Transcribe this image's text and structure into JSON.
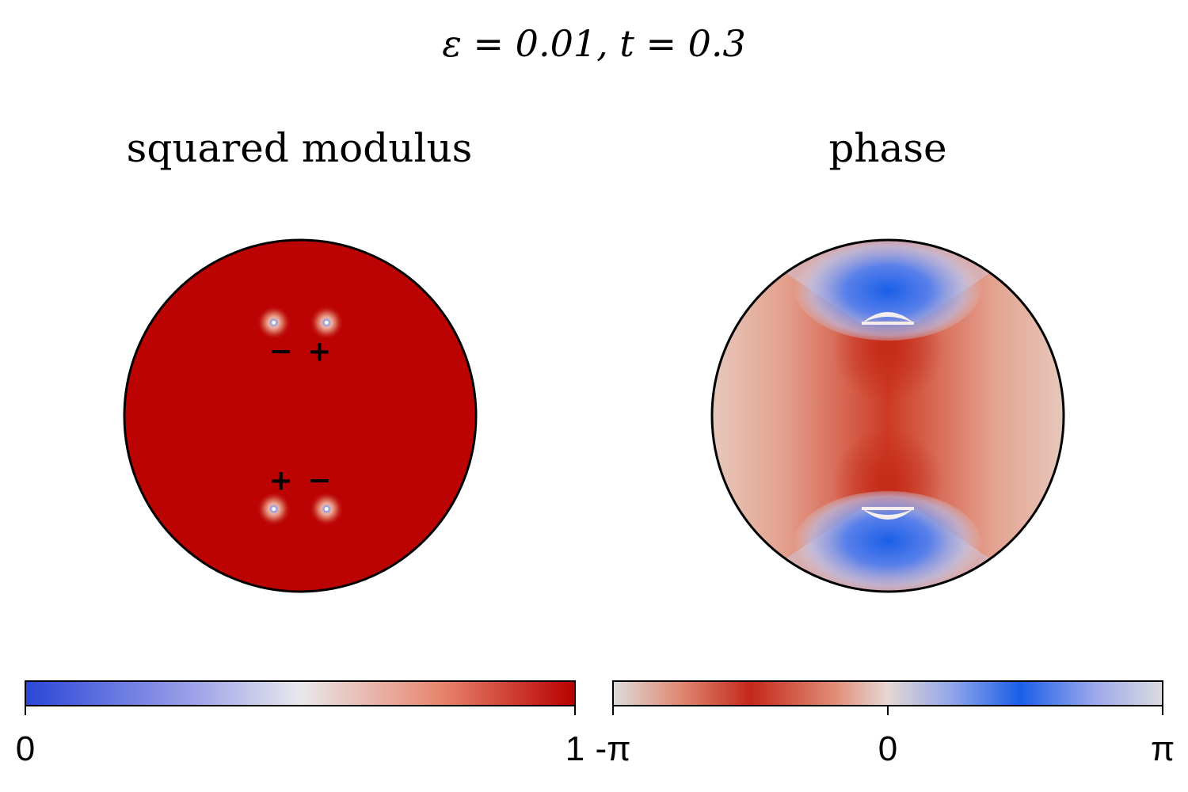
{
  "figure": {
    "title": "ε = 0.01,    t = 0.3"
  },
  "chart_data": [
    {
      "type": "heatmap",
      "title": "squared modulus",
      "domain": "disk",
      "uniform_value": 1,
      "vortices": [
        {
          "x": -0.15,
          "y": 0.53,
          "sign": "−"
        },
        {
          "x": 0.15,
          "y": 0.53,
          "sign": "+"
        },
        {
          "x": -0.15,
          "y": -0.53,
          "sign": "+"
        },
        {
          "x": 0.15,
          "y": -0.53,
          "sign": "−"
        }
      ],
      "colorbar": {
        "range": [
          0,
          1
        ],
        "ticks": [
          "0",
          "1"
        ],
        "colormap": "blue-white-red",
        "colors": [
          "#2b46d8",
          "#e8e8ec",
          "#b80000"
        ]
      }
    },
    {
      "type": "heatmap",
      "title": "phase",
      "domain": "disk",
      "colorbar": {
        "range": [
          "-π",
          "π"
        ],
        "ticks": [
          "-π",
          "0",
          "π"
        ],
        "colormap": "cyclic",
        "colors": [
          "#dcdcdc",
          "#c4281a",
          "#e6d8d4",
          "#1a5fe8",
          "#dcdce0"
        ]
      }
    }
  ]
}
